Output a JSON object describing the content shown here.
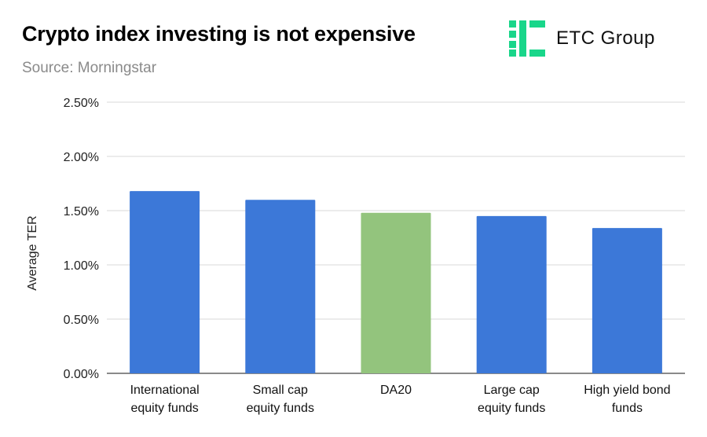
{
  "header": {
    "title": "Crypto index investing is not expensive",
    "subtitle": "Source: Morningstar"
  },
  "logo": {
    "icon": "etc-group-logo-icon",
    "text": "ETC Group",
    "color": "#19d68a"
  },
  "chart_data": {
    "type": "bar",
    "title": "Crypto index investing is not expensive",
    "subtitle": "Source: Morningstar",
    "ylabel": "Average TER",
    "xlabel": "",
    "ylim": [
      0,
      2.5
    ],
    "yticks": [
      0,
      0.5,
      1.0,
      1.5,
      2.0,
      2.5
    ],
    "ytick_labels": [
      "0.00%",
      "0.50%",
      "1.00%",
      "1.50%",
      "2.00%",
      "2.50%"
    ],
    "grid": true,
    "categories": [
      [
        "International",
        "equity funds"
      ],
      [
        "Small cap",
        "equity funds"
      ],
      [
        "DA20"
      ],
      [
        "Large cap",
        "equity funds"
      ],
      [
        "High yield bond",
        "funds"
      ]
    ],
    "values": [
      1.68,
      1.6,
      1.48,
      1.45,
      1.34
    ],
    "colors": [
      "#3c78d8",
      "#3c78d8",
      "#93c47d",
      "#3c78d8",
      "#3c78d8"
    ]
  }
}
